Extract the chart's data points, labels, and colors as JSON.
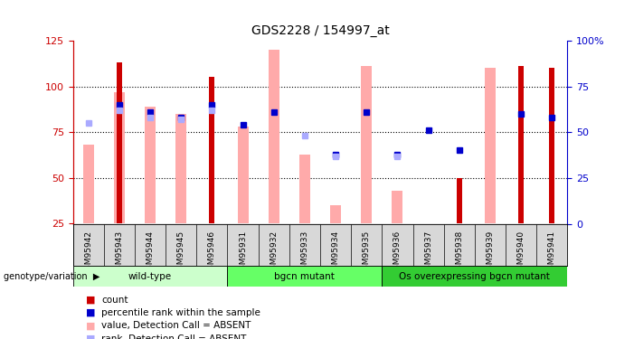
{
  "title": "GDS2228 / 154997_at",
  "samples": [
    "GSM95942",
    "GSM95943",
    "GSM95944",
    "GSM95945",
    "GSM95946",
    "GSM95931",
    "GSM95932",
    "GSM95933",
    "GSM95934",
    "GSM95935",
    "GSM95936",
    "GSM95937",
    "GSM95938",
    "GSM95939",
    "GSM95940",
    "GSM95941"
  ],
  "groups": [
    {
      "label": "wild-type",
      "color": "#ccffcc",
      "start": 0,
      "end": 5
    },
    {
      "label": "bgcn mutant",
      "color": "#66ff66",
      "start": 5,
      "end": 10
    },
    {
      "label": "Os overexpressing bgcn mutant",
      "color": "#33cc33",
      "start": 10,
      "end": 16
    }
  ],
  "count_values": [
    null,
    113,
    null,
    null,
    105,
    null,
    null,
    null,
    null,
    null,
    null,
    null,
    50,
    null,
    111,
    110
  ],
  "pink_bar_top": [
    68,
    97,
    89,
    85,
    null,
    78,
    120,
    63,
    35,
    111,
    43,
    null,
    null,
    110,
    null,
    null
  ],
  "blue_square_y": [
    null,
    90,
    86,
    83,
    90,
    79,
    86,
    null,
    63,
    86,
    63,
    76,
    65,
    null,
    85,
    83
  ],
  "light_blue_square_y": [
    80,
    87,
    83,
    82,
    87,
    null,
    null,
    73,
    62,
    null,
    62,
    null,
    null,
    null,
    null,
    null
  ],
  "ylim_left": [
    25,
    125
  ],
  "ylim_right": [
    0,
    100
  ],
  "yticks_left": [
    25,
    50,
    75,
    100,
    125
  ],
  "yticks_right": [
    0,
    25,
    50,
    75,
    100
  ],
  "left_color": "#cc0000",
  "right_color": "#0000cc",
  "count_color": "#cc0000",
  "blue_sq_color": "#0000cc",
  "pink_bar_color": "#ffaaaa",
  "light_blue_sq_color": "#aaaaff",
  "legend_items": [
    {
      "color": "#cc0000",
      "label": "count"
    },
    {
      "color": "#0000cc",
      "label": "percentile rank within the sample"
    },
    {
      "color": "#ffaaaa",
      "label": "value, Detection Call = ABSENT"
    },
    {
      "color": "#aaaaff",
      "label": "rank, Detection Call = ABSENT"
    }
  ],
  "genotype_label": "genotype/variation"
}
